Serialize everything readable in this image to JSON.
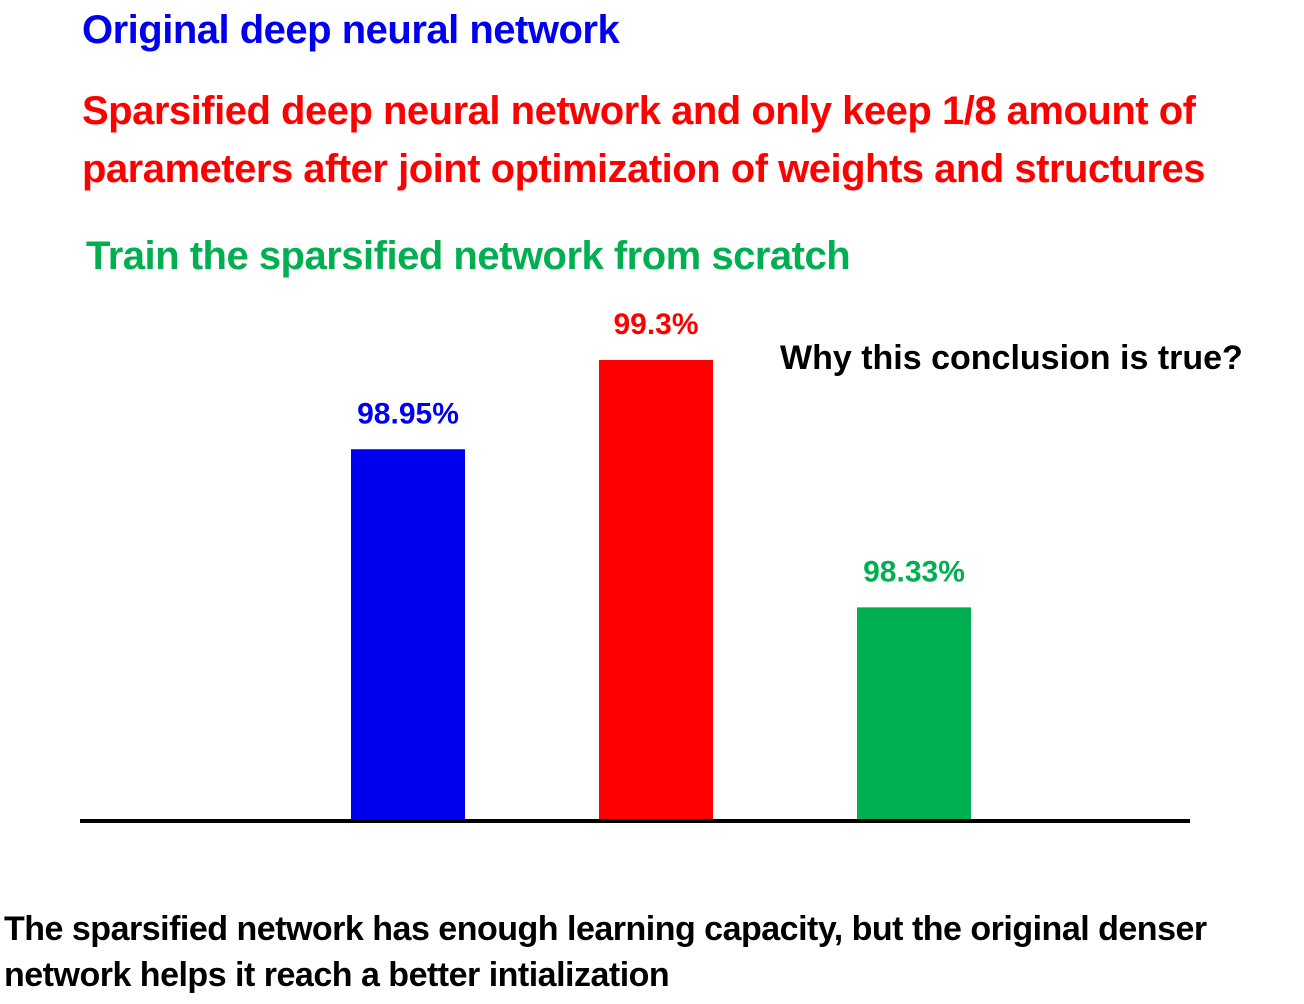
{
  "legend": {
    "original": "Original deep neural network",
    "sparsified_line1": "Sparsified deep neural network and only keep 1/8 amount of",
    "sparsified_line2": "parameters after joint optimization of weights and structures",
    "scratch": "Train the sparsified network from scratch"
  },
  "question": "Why this conclusion is true?",
  "conclusion": "The sparsified network has enough learning capacity, but the original denser network helps it reach a better intialization",
  "colors": {
    "original": "#0000ee",
    "sparsified": "#ff0000",
    "scratch": "#00b050",
    "axis": "#000000"
  },
  "chart_data": {
    "type": "bar",
    "title": "",
    "xlabel": "",
    "ylabel": "",
    "series": [
      {
        "name": "Original deep neural network",
        "value": 98.95,
        "label": "98.95%",
        "color": "#0000ee"
      },
      {
        "name": "Sparsified deep neural network and only keep 1/8 amount of parameters after joint optimization of weights and structures",
        "value": 99.3,
        "label": "99.3%",
        "color": "#ff0000"
      },
      {
        "name": "Train the sparsified network from scratch",
        "value": 98.33,
        "label": "98.33%",
        "color": "#00b050"
      }
    ],
    "ylim": [
      97.5,
      99.5
    ],
    "grid": false,
    "legend": "top-left"
  }
}
